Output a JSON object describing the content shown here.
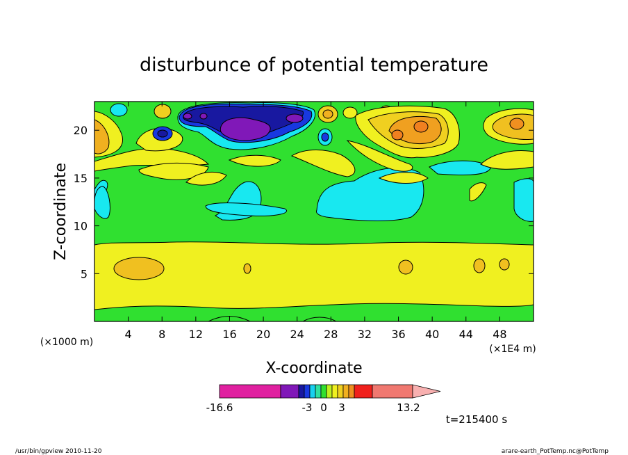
{
  "chart_data": {
    "type": "heatmap",
    "title": "disturbunce of potential temperature",
    "xlabel": "X-coordinate",
    "ylabel": "Z-coordinate",
    "x_unit_left": "(×1000 m)",
    "x_unit_right": "(×1E4 m)",
    "xlim": [
      0,
      52
    ],
    "ylim": [
      0,
      23
    ],
    "x_ticks": [
      4,
      8,
      12,
      16,
      20,
      24,
      28,
      32,
      36,
      40,
      44,
      48
    ],
    "y_ticks": [
      5,
      10,
      15,
      20
    ],
    "colorbar": {
      "colors": [
        "#e020a0",
        "#8018b8",
        "#1818a0",
        "#1838e0",
        "#18d0f0",
        "#30e0a0",
        "#30e030",
        "#c0f020",
        "#f0f020",
        "#f0d020",
        "#f0b020",
        "#f09020",
        "#f0201c",
        "#f07870",
        "#f8b0b0"
      ],
      "labels": [
        {
          "text": "-16.6",
          "value": -16.6
        },
        {
          "text": "-3",
          "value": -3
        },
        {
          "text": "0",
          "value": 0
        },
        {
          "text": "3",
          "value": 3
        },
        {
          "text": "13.2",
          "value": 13.2
        }
      ]
    },
    "regions": [
      {
        "level": "yellow",
        "band_z": [
          0.3,
          8.5
        ],
        "x_range": [
          0,
          52
        ]
      },
      {
        "level": "green",
        "band_z": [
          8.5,
          13.5
        ],
        "x_range": [
          0,
          52
        ]
      },
      {
        "level": "purple",
        "center": [
          18,
          20.3
        ],
        "approx_value": -10
      },
      {
        "level": "orange",
        "center": [
          38,
          20
        ],
        "approx_value": 4
      },
      {
        "level": "cyan",
        "center": [
          31,
          14
        ],
        "approx_value": -0.6
      }
    ]
  },
  "time_label": "t=215400 s",
  "footer": {
    "left": "/usr/bin/gpview   2010-11-20",
    "right": "arare-earth_PotTemp.nc@PotTemp"
  }
}
